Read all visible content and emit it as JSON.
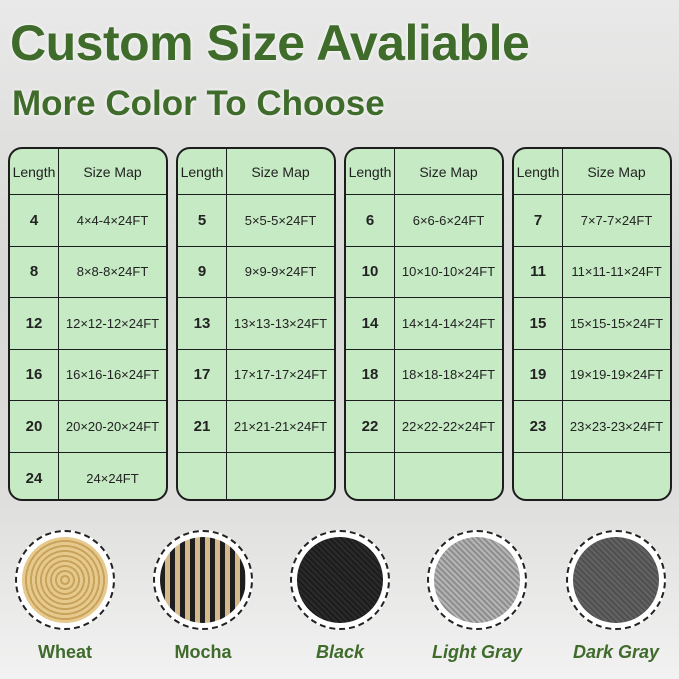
{
  "title": "Custom Size Avaliable",
  "subtitle": "More Color To Choose",
  "table_headers": {
    "length": "Length",
    "size_map": "Size Map"
  },
  "tables": [
    {
      "rows": [
        [
          "4",
          "4×4-4×24FT"
        ],
        [
          "8",
          "8×8-8×24FT"
        ],
        [
          "12",
          "12×12-12×24FT"
        ],
        [
          "16",
          "16×16-16×24FT"
        ],
        [
          "20",
          "20×20-20×24FT"
        ],
        [
          "24",
          "24×24FT"
        ]
      ]
    },
    {
      "rows": [
        [
          "5",
          "5×5-5×24FT"
        ],
        [
          "9",
          "9×9-9×24FT"
        ],
        [
          "13",
          "13×13-13×24FT"
        ],
        [
          "17",
          "17×17-17×24FT"
        ],
        [
          "21",
          "21×21-21×24FT"
        ],
        [
          "",
          ""
        ]
      ]
    },
    {
      "rows": [
        [
          "6",
          "6×6-6×24FT"
        ],
        [
          "10",
          "10×10-10×24FT"
        ],
        [
          "14",
          "14×14-14×24FT"
        ],
        [
          "18",
          "18×18-18×24FT"
        ],
        [
          "22",
          "22×22-22×24FT"
        ],
        [
          "",
          ""
        ]
      ]
    },
    {
      "rows": [
        [
          "7",
          "7×7-7×24FT"
        ],
        [
          "11",
          "11×11-11×24FT"
        ],
        [
          "15",
          "15×15-15×24FT"
        ],
        [
          "19",
          "19×19-19×24FT"
        ],
        [
          "23",
          "23×23-23×24FT"
        ],
        [
          "",
          ""
        ]
      ]
    }
  ],
  "colors": [
    {
      "name": "Wheat",
      "swatch": "#d9b97a",
      "italic": false
    },
    {
      "name": "Mocha",
      "swatch": "#6b5a40",
      "italic": false
    },
    {
      "name": "Black",
      "swatch": "#2a2a2a",
      "italic": true
    },
    {
      "name": "Light Gray",
      "swatch": "#a9a9a9",
      "italic": true
    },
    {
      "name": "Dark Gray",
      "swatch": "#5c5c5c",
      "italic": true
    }
  ]
}
